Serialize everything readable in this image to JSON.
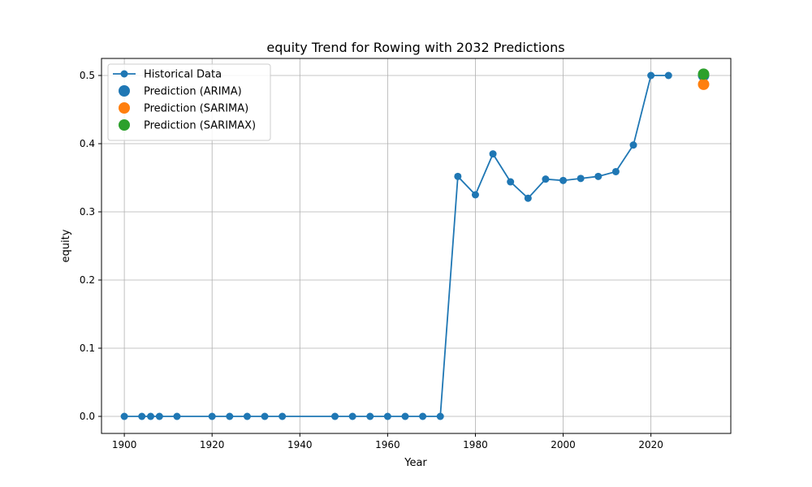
{
  "chart_data": {
    "type": "line",
    "title": "equity Trend for Rowing with 2032 Predictions",
    "xlabel": "Year",
    "ylabel": "equity",
    "xlim": [
      1894.8,
      2038.2
    ],
    "ylim": [
      -0.025,
      0.525
    ],
    "xticks": [
      1900,
      1920,
      1940,
      1960,
      1980,
      2000,
      2020
    ],
    "yticks": [
      0.0,
      0.1,
      0.2,
      0.3,
      0.4,
      0.5
    ],
    "ytick_labels": [
      "0.0",
      "0.1",
      "0.2",
      "0.3",
      "0.4",
      "0.5"
    ],
    "grid": true,
    "legend_position": "top-left",
    "series": [
      {
        "name": "Historical Data",
        "kind": "line-marker",
        "color": "#1f77b4",
        "x": [
          1900,
          1904,
          1906,
          1908,
          1912,
          1920,
          1924,
          1928,
          1932,
          1936,
          1948,
          1952,
          1956,
          1960,
          1964,
          1968,
          1972,
          1976,
          1980,
          1984,
          1988,
          1992,
          1996,
          2000,
          2004,
          2008,
          2012,
          2016,
          2020,
          2024
        ],
        "y": [
          0,
          0,
          0,
          0,
          0,
          0,
          0,
          0,
          0,
          0,
          0,
          0,
          0,
          0,
          0,
          0,
          0,
          0.352,
          0.325,
          0.385,
          0.344,
          0.32,
          0.348,
          0.346,
          0.349,
          0.352,
          0.359,
          0.398,
          0.5,
          0.5
        ]
      },
      {
        "name": "Prediction (ARIMA)",
        "kind": "point",
        "color": "#1f77b4",
        "x": [
          2032
        ],
        "y": [
          0.5
        ]
      },
      {
        "name": "Prediction (SARIMA)",
        "kind": "point",
        "color": "#ff7f0e",
        "x": [
          2032
        ],
        "y": [
          0.487
        ]
      },
      {
        "name": "Prediction (SARIMAX)",
        "kind": "point",
        "color": "#2ca02c",
        "x": [
          2032
        ],
        "y": [
          0.502
        ]
      }
    ]
  }
}
